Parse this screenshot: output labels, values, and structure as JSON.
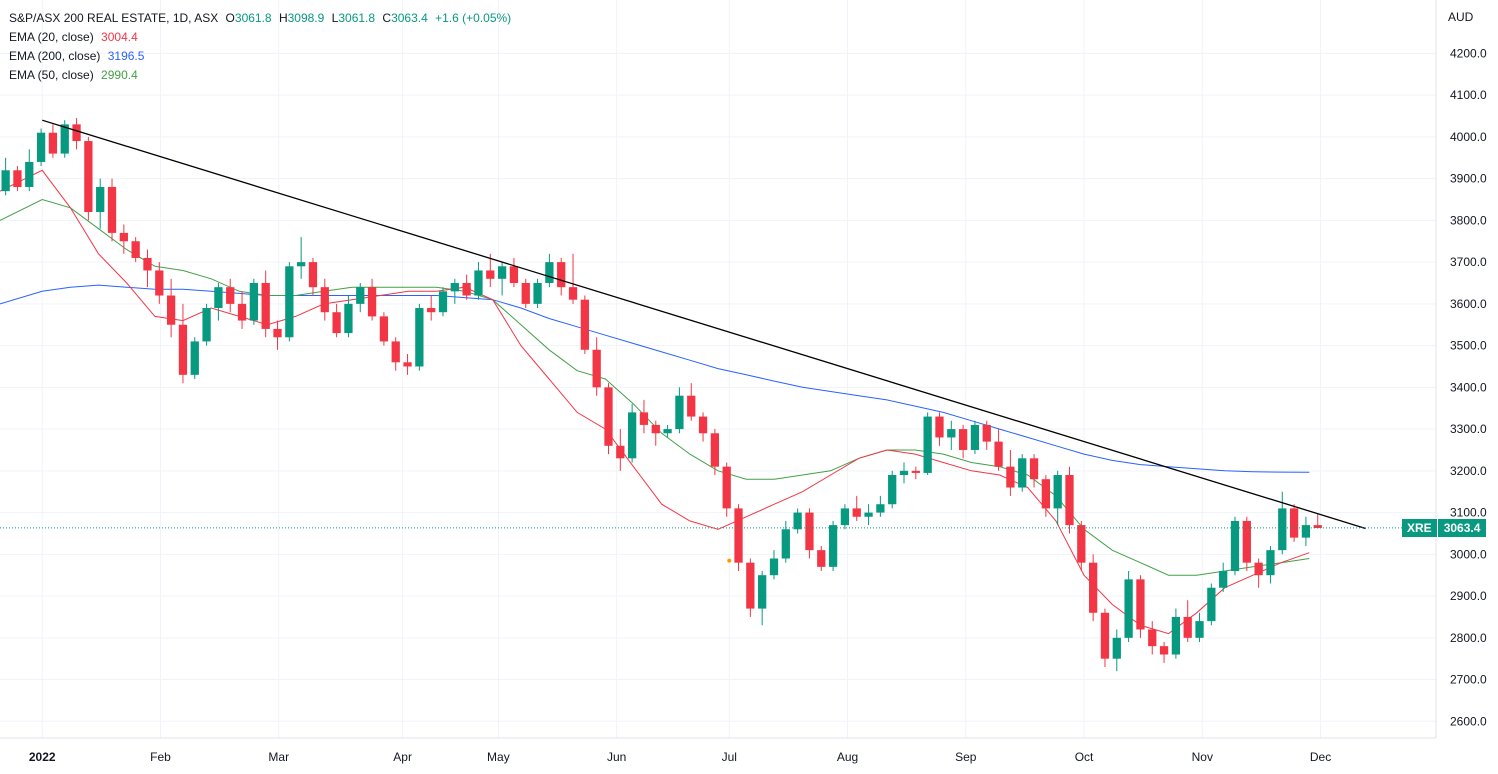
{
  "legend": {
    "title": "S&P/ASX 200 REAL ESTATE, 1D, ASX",
    "o_label": "O",
    "o": "3061.8",
    "h_label": "H",
    "h": "3098.9",
    "l_label": "L",
    "l": "3061.8",
    "c_label": "C",
    "c": "3063.4",
    "change": "+1.6 (+0.05%)",
    "ema20_label": "EMA (20, close)",
    "ema20_value": "3004.4",
    "ema200_label": "EMA (200, close)",
    "ema200_value": "3196.5",
    "ema50_label": "EMA (50, close)",
    "ema50_value": "2990.4"
  },
  "currency": "AUD",
  "price_tag": {
    "symbol": "XRE",
    "price": "3063.4"
  },
  "colors": {
    "up": "#089981",
    "down": "#f23645",
    "ema20": "#f23645",
    "ema200": "#2962ff",
    "ema50": "#43a047",
    "trendline": "#000000",
    "grid": "#f0f3fa"
  },
  "chart_data": {
    "type": "candlestick",
    "title": "S&P/ASX 200 REAL ESTATE, 1D, ASX",
    "ylim": [
      2560,
      4280
    ],
    "y_ticks": [
      "2600.0",
      "2700.0",
      "2800.0",
      "2900.0",
      "3000.0",
      "3100.0",
      "3200.0",
      "3300.0",
      "3400.0",
      "3500.0",
      "3600.0",
      "3700.0",
      "3800.0",
      "3900.0",
      "4000.0",
      "4100.0",
      "4200.0"
    ],
    "x_day_range": [
      -1.5,
      49.5
    ],
    "month_labels": [
      {
        "label": "2022",
        "day": 0,
        "bold": true
      },
      {
        "label": "Feb",
        "day": 4.2
      },
      {
        "label": "Mar",
        "day": 8.4
      },
      {
        "label": "Apr",
        "day": 12.8
      },
      {
        "label": "May",
        "day": 16.2
      },
      {
        "label": "Jun",
        "day": 20.4
      },
      {
        "label": "Jul",
        "day": 24.4
      },
      {
        "label": "Aug",
        "day": 28.6
      },
      {
        "label": "Sep",
        "day": 32.8
      },
      {
        "label": "Oct",
        "day": 37.0
      },
      {
        "label": "Nov",
        "day": 41.2
      },
      {
        "label": "Dec",
        "day": 45.4
      }
    ],
    "last_close": 3063.4,
    "candles": [
      [
        3870,
        3950,
        3860,
        3920
      ],
      [
        3920,
        3930,
        3870,
        3880
      ],
      [
        3880,
        3970,
        3870,
        3940
      ],
      [
        3940,
        4020,
        3930,
        4010
      ],
      [
        4010,
        4030,
        3950,
        3960
      ],
      [
        3960,
        4040,
        3950,
        4030
      ],
      [
        4030,
        4045,
        3970,
        3990
      ],
      [
        3990,
        4000,
        3800,
        3820
      ],
      [
        3820,
        3900,
        3780,
        3880
      ],
      [
        3880,
        3900,
        3750,
        3770
      ],
      [
        3770,
        3790,
        3720,
        3750
      ],
      [
        3750,
        3760,
        3700,
        3710
      ],
      [
        3710,
        3730,
        3640,
        3680
      ],
      [
        3680,
        3700,
        3600,
        3620
      ],
      [
        3620,
        3660,
        3520,
        3550
      ],
      [
        3550,
        3600,
        3410,
        3430
      ],
      [
        3430,
        3520,
        3420,
        3510
      ],
      [
        3510,
        3600,
        3500,
        3590
      ],
      [
        3590,
        3650,
        3560,
        3640
      ],
      [
        3640,
        3660,
        3580,
        3600
      ],
      [
        3600,
        3630,
        3540,
        3560
      ],
      [
        3560,
        3660,
        3550,
        3650
      ],
      [
        3650,
        3680,
        3520,
        3540
      ],
      [
        3540,
        3560,
        3490,
        3520
      ],
      [
        3520,
        3700,
        3510,
        3690
      ],
      [
        3690,
        3760,
        3660,
        3700
      ],
      [
        3700,
        3710,
        3620,
        3640
      ],
      [
        3640,
        3660,
        3560,
        3580
      ],
      [
        3580,
        3600,
        3520,
        3530
      ],
      [
        3530,
        3620,
        3520,
        3600
      ],
      [
        3600,
        3650,
        3580,
        3640
      ],
      [
        3640,
        3660,
        3560,
        3570
      ],
      [
        3570,
        3580,
        3500,
        3510
      ],
      [
        3510,
        3520,
        3440,
        3460
      ],
      [
        3460,
        3480,
        3430,
        3450
      ],
      [
        3450,
        3600,
        3440,
        3590
      ],
      [
        3590,
        3620,
        3560,
        3580
      ],
      [
        3580,
        3640,
        3570,
        3630
      ],
      [
        3630,
        3660,
        3600,
        3650
      ],
      [
        3650,
        3670,
        3610,
        3620
      ],
      [
        3620,
        3700,
        3610,
        3680
      ],
      [
        3680,
        3720,
        3640,
        3660
      ],
      [
        3660,
        3700,
        3620,
        3690
      ],
      [
        3690,
        3710,
        3640,
        3650
      ],
      [
        3650,
        3660,
        3590,
        3600
      ],
      [
        3600,
        3660,
        3590,
        3650
      ],
      [
        3650,
        3720,
        3640,
        3700
      ],
      [
        3700,
        3710,
        3620,
        3640
      ],
      [
        3640,
        3720,
        3600,
        3610
      ],
      [
        3610,
        3620,
        3480,
        3490
      ],
      [
        3490,
        3520,
        3380,
        3400
      ],
      [
        3400,
        3410,
        3240,
        3260
      ],
      [
        3260,
        3300,
        3200,
        3230
      ],
      [
        3230,
        3360,
        3220,
        3340
      ],
      [
        3340,
        3370,
        3290,
        3310
      ],
      [
        3310,
        3320,
        3260,
        3290
      ],
      [
        3290,
        3310,
        3280,
        3300
      ],
      [
        3300,
        3400,
        3290,
        3380
      ],
      [
        3380,
        3410,
        3320,
        3330
      ],
      [
        3330,
        3340,
        3270,
        3290
      ],
      [
        3290,
        3300,
        3190,
        3210
      ],
      [
        3210,
        3220,
        3090,
        3110
      ],
      [
        3110,
        3120,
        2960,
        2980
      ],
      [
        2980,
        2990,
        2850,
        2870
      ],
      [
        2870,
        2960,
        2830,
        2950
      ],
      [
        2950,
        3010,
        2940,
        2990
      ],
      [
        2990,
        3080,
        2980,
        3060
      ],
      [
        3060,
        3110,
        3050,
        3100
      ],
      [
        3100,
        3110,
        2990,
        3010
      ],
      [
        3010,
        3020,
        2960,
        2970
      ],
      [
        2970,
        3080,
        2960,
        3070
      ],
      [
        3070,
        3120,
        3060,
        3110
      ],
      [
        3110,
        3140,
        3080,
        3090
      ],
      [
        3090,
        3120,
        3070,
        3100
      ],
      [
        3100,
        3140,
        3090,
        3120
      ],
      [
        3120,
        3200,
        3110,
        3190
      ],
      [
        3190,
        3220,
        3170,
        3200
      ],
      [
        3200,
        3210,
        3180,
        3195
      ],
      [
        3195,
        3340,
        3190,
        3330
      ],
      [
        3330,
        3340,
        3260,
        3280
      ],
      [
        3280,
        3320,
        3250,
        3300
      ],
      [
        3300,
        3310,
        3230,
        3250
      ],
      [
        3250,
        3320,
        3240,
        3310
      ],
      [
        3310,
        3320,
        3250,
        3270
      ],
      [
        3270,
        3300,
        3200,
        3210
      ],
      [
        3210,
        3250,
        3140,
        3160
      ],
      [
        3160,
        3240,
        3150,
        3230
      ],
      [
        3230,
        3240,
        3160,
        3180
      ],
      [
        3180,
        3190,
        3090,
        3110
      ],
      [
        3110,
        3200,
        3070,
        3190
      ],
      [
        3190,
        3210,
        3050,
        3070
      ],
      [
        3070,
        3080,
        2960,
        2980
      ],
      [
        2980,
        3000,
        2840,
        2860
      ],
      [
        2860,
        2870,
        2730,
        2750
      ],
      [
        2750,
        2820,
        2720,
        2800
      ],
      [
        2800,
        2960,
        2790,
        2940
      ],
      [
        2940,
        2950,
        2800,
        2820
      ],
      [
        2820,
        2840,
        2760,
        2780
      ],
      [
        2780,
        2790,
        2740,
        2760
      ],
      [
        2760,
        2870,
        2750,
        2850
      ],
      [
        2850,
        2890,
        2790,
        2800
      ],
      [
        2800,
        2860,
        2790,
        2840
      ],
      [
        2840,
        2930,
        2830,
        2920
      ],
      [
        2920,
        2980,
        2910,
        2960
      ],
      [
        2960,
        3090,
        2950,
        3080
      ],
      [
        3080,
        3090,
        2960,
        2980
      ],
      [
        2980,
        2990,
        2920,
        2950
      ],
      [
        2950,
        3020,
        2930,
        3010
      ],
      [
        3010,
        3150,
        3000,
        3110
      ],
      [
        3110,
        3120,
        3030,
        3040
      ],
      [
        3040,
        3090,
        3020,
        3070
      ],
      [
        3070,
        3099,
        3062,
        3063
      ]
    ],
    "ema20": [
      [
        -1.5,
        3870
      ],
      [
        0,
        3920
      ],
      [
        1,
        3830
      ],
      [
        2,
        3720
      ],
      [
        3,
        3650
      ],
      [
        4,
        3570
      ],
      [
        5,
        3560
      ],
      [
        6,
        3590
      ],
      [
        7,
        3570
      ],
      [
        8,
        3550
      ],
      [
        9,
        3570
      ],
      [
        10,
        3600
      ],
      [
        11,
        3610
      ],
      [
        12,
        3620
      ],
      [
        13,
        3630
      ],
      [
        14,
        3630
      ],
      [
        15,
        3640
      ],
      [
        16,
        3610
      ],
      [
        17,
        3500
      ],
      [
        18,
        3420
      ],
      [
        19,
        3340
      ],
      [
        20,
        3300
      ],
      [
        21,
        3210
      ],
      [
        22,
        3120
      ],
      [
        23,
        3080
      ],
      [
        24,
        3060
      ],
      [
        25,
        3090
      ],
      [
        26,
        3120
      ],
      [
        27,
        3150
      ],
      [
        28,
        3190
      ],
      [
        29,
        3230
      ],
      [
        30,
        3250
      ],
      [
        31,
        3240
      ],
      [
        32,
        3220
      ],
      [
        33,
        3200
      ],
      [
        34,
        3190
      ],
      [
        35,
        3160
      ],
      [
        36,
        3080
      ],
      [
        37,
        2950
      ],
      [
        38,
        2880
      ],
      [
        39,
        2830
      ],
      [
        40,
        2810
      ],
      [
        41,
        2860
      ],
      [
        42,
        2920
      ],
      [
        43,
        2950
      ],
      [
        44,
        2980
      ],
      [
        45,
        3004
      ]
    ],
    "ema50": [
      [
        -1.5,
        3800
      ],
      [
        0,
        3850
      ],
      [
        1,
        3830
      ],
      [
        2,
        3780
      ],
      [
        3,
        3730
      ],
      [
        4,
        3690
      ],
      [
        5,
        3680
      ],
      [
        6,
        3660
      ],
      [
        7,
        3630
      ],
      [
        8,
        3620
      ],
      [
        9,
        3620
      ],
      [
        10,
        3630
      ],
      [
        11,
        3640
      ],
      [
        12,
        3640
      ],
      [
        13,
        3640
      ],
      [
        14,
        3640
      ],
      [
        15,
        3630
      ],
      [
        16,
        3610
      ],
      [
        17,
        3550
      ],
      [
        18,
        3490
      ],
      [
        19,
        3440
      ],
      [
        20,
        3420
      ],
      [
        21,
        3360
      ],
      [
        22,
        3290
      ],
      [
        23,
        3240
      ],
      [
        24,
        3200
      ],
      [
        25,
        3180
      ],
      [
        26,
        3180
      ],
      [
        27,
        3190
      ],
      [
        28,
        3200
      ],
      [
        29,
        3230
      ],
      [
        30,
        3250
      ],
      [
        31,
        3250
      ],
      [
        32,
        3240
      ],
      [
        33,
        3220
      ],
      [
        34,
        3210
      ],
      [
        35,
        3190
      ],
      [
        36,
        3140
      ],
      [
        37,
        3060
      ],
      [
        38,
        3010
      ],
      [
        39,
        2980
      ],
      [
        40,
        2950
      ],
      [
        41,
        2950
      ],
      [
        42,
        2960
      ],
      [
        43,
        2970
      ],
      [
        44,
        2980
      ],
      [
        45,
        2990
      ]
    ],
    "ema200": [
      [
        -1.5,
        3600
      ],
      [
        0,
        3630
      ],
      [
        1,
        3640
      ],
      [
        2,
        3645
      ],
      [
        3,
        3640
      ],
      [
        4,
        3635
      ],
      [
        5,
        3635
      ],
      [
        6,
        3630
      ],
      [
        7,
        3625
      ],
      [
        8,
        3620
      ],
      [
        9,
        3620
      ],
      [
        10,
        3620
      ],
      [
        11,
        3620
      ],
      [
        12,
        3620
      ],
      [
        13,
        3620
      ],
      [
        14,
        3620
      ],
      [
        15,
        3615
      ],
      [
        16,
        3610
      ],
      [
        17,
        3590
      ],
      [
        18,
        3565
      ],
      [
        19,
        3545
      ],
      [
        20,
        3525
      ],
      [
        21,
        3505
      ],
      [
        22,
        3485
      ],
      [
        23,
        3465
      ],
      [
        24,
        3445
      ],
      [
        25,
        3430
      ],
      [
        26,
        3415
      ],
      [
        27,
        3400
      ],
      [
        28,
        3390
      ],
      [
        29,
        3380
      ],
      [
        30,
        3370
      ],
      [
        31,
        3355
      ],
      [
        32,
        3340
      ],
      [
        33,
        3320
      ],
      [
        34,
        3300
      ],
      [
        35,
        3280
      ],
      [
        36,
        3260
      ],
      [
        37,
        3240
      ],
      [
        38,
        3225
      ],
      [
        39,
        3215
      ],
      [
        40,
        3210
      ],
      [
        41,
        3205
      ],
      [
        42,
        3200
      ],
      [
        43,
        3198
      ],
      [
        44,
        3197
      ],
      [
        45,
        3196.5
      ]
    ],
    "trendline": [
      [
        0,
        4040
      ],
      [
        47,
        3062
      ]
    ],
    "marker": {
      "day": 24.4,
      "value": 2985,
      "color": "#ff9800"
    }
  }
}
